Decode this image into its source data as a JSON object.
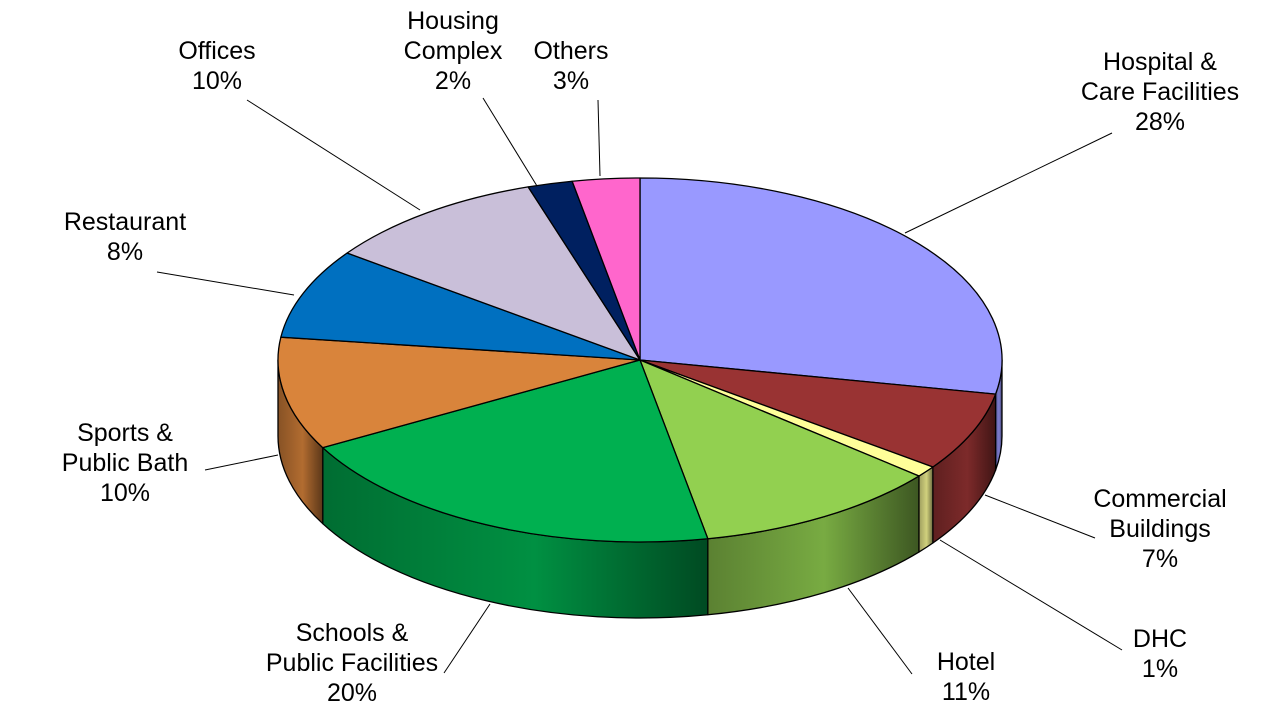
{
  "chart_data": {
    "type": "pie",
    "title": "",
    "start_category": "Hospital & Care Facilities",
    "direction": "clockwise",
    "slices": [
      {
        "label_lines": [
          "Hospital &",
          "Care Facilities"
        ],
        "percent_label": "28%",
        "value": 28,
        "color": "#9999FF"
      },
      {
        "label_lines": [
          "Commercial",
          "Buildings"
        ],
        "percent_label": "7%",
        "value": 7,
        "color": "#993333"
      },
      {
        "label_lines": [
          "DHC"
        ],
        "percent_label": "1%",
        "value": 1,
        "color": "#FFFF99"
      },
      {
        "label_lines": [
          "Hotel"
        ],
        "percent_label": "11%",
        "value": 11,
        "color": "#92D050"
      },
      {
        "label_lines": [
          "Schools &",
          "Public Facilities"
        ],
        "percent_label": "20%",
        "value": 20,
        "color": "#00B050"
      },
      {
        "label_lines": [
          "Sports &",
          "Public Bath"
        ],
        "percent_label": "10%",
        "value": 10,
        "color": "#D9843B"
      },
      {
        "label_lines": [
          "Restaurant"
        ],
        "percent_label": "8%",
        "value": 8,
        "color": "#0070C0"
      },
      {
        "label_lines": [
          "Offices"
        ],
        "percent_label": "10%",
        "value": 10,
        "color": "#C9BFD9"
      },
      {
        "label_lines": [
          "Housing",
          "Complex"
        ],
        "percent_label": "2%",
        "value": 2,
        "color": "#002060"
      },
      {
        "label_lines": [
          "Others"
        ],
        "percent_label": "3%",
        "value": 3,
        "color": "#FF66CC"
      }
    ]
  }
}
